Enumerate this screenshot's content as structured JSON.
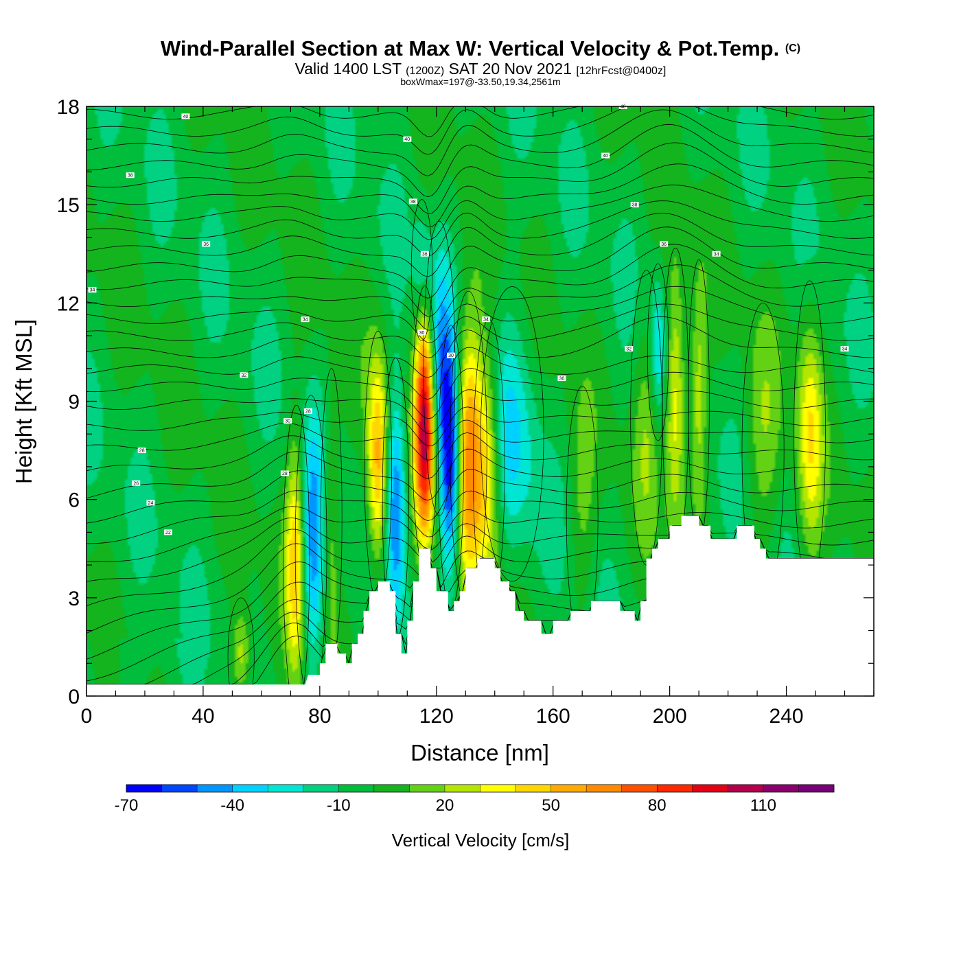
{
  "title": "Wind-Parallel Section at Max W: Vertical Velocity & Pot.Temp.",
  "copyright": "(C)",
  "subtitle_main_a": "Valid 1400 LST",
  "subtitle_small_a": "(1200Z)",
  "subtitle_main_b": "SAT 20 Nov 2021",
  "subtitle_small_b": "[12hrFcst@0400z]",
  "subtitle3": "boxWmax=197@-33.50,19.34,2561m",
  "chart_data": {
    "type": "heatmap",
    "xlabel": "Distance [nm]",
    "ylabel": "Height [Kft MSL]",
    "xlim": [
      0,
      270
    ],
    "ylim": [
      0,
      18
    ],
    "x_ticks": [
      0,
      40,
      80,
      120,
      160,
      200,
      240
    ],
    "y_ticks": [
      0,
      3,
      6,
      9,
      12,
      15,
      18
    ],
    "colorbar": {
      "title": "Vertical Velocity [cm/s]",
      "tick_values": [
        -70,
        -40,
        -10,
        20,
        50,
        80,
        110
      ],
      "bins": [
        -70,
        -60,
        -50,
        -40,
        -30,
        -20,
        -10,
        0,
        10,
        20,
        30,
        40,
        50,
        60,
        70,
        80,
        90,
        100,
        110,
        120,
        130
      ],
      "colors": [
        "#0000ff",
        "#0046ff",
        "#0096ff",
        "#00d2ff",
        "#00e6d2",
        "#00d282",
        "#00be3c",
        "#14b41e",
        "#64d214",
        "#b4e600",
        "#ffff00",
        "#ffd700",
        "#ffaa00",
        "#ff8c00",
        "#ff5000",
        "#ff2800",
        "#e60014",
        "#b4004b",
        "#8c006e",
        "#780078"
      ]
    },
    "terrain": [
      [
        0,
        0.35
      ],
      [
        75,
        0.35
      ],
      [
        76,
        0.65
      ],
      [
        80,
        0.65
      ],
      [
        80,
        1.0
      ],
      [
        82,
        1.0
      ],
      [
        82,
        1.6
      ],
      [
        86,
        1.6
      ],
      [
        86,
        1.3
      ],
      [
        89,
        1.3
      ],
      [
        89,
        1.0
      ],
      [
        91,
        1.0
      ],
      [
        91,
        1.6
      ],
      [
        93,
        1.6
      ],
      [
        93,
        1.9
      ],
      [
        95,
        1.9
      ],
      [
        95,
        2.6
      ],
      [
        97,
        2.6
      ],
      [
        97,
        3.2
      ],
      [
        100,
        3.2
      ],
      [
        100,
        3.5
      ],
      [
        104,
        3.5
      ],
      [
        104,
        3.2
      ],
      [
        106,
        3.2
      ],
      [
        106,
        1.9
      ],
      [
        108,
        1.9
      ],
      [
        108,
        1.3
      ],
      [
        110,
        1.3
      ],
      [
        110,
        2.3
      ],
      [
        112,
        2.3
      ],
      [
        112,
        3.5
      ],
      [
        114,
        3.5
      ],
      [
        114,
        4.5
      ],
      [
        118,
        4.5
      ],
      [
        118,
        3.9
      ],
      [
        120,
        3.9
      ],
      [
        120,
        3.2
      ],
      [
        124,
        3.2
      ],
      [
        124,
        2.6
      ],
      [
        126,
        2.6
      ],
      [
        126,
        2.9
      ],
      [
        128,
        2.9
      ],
      [
        128,
        3.2
      ],
      [
        130,
        3.2
      ],
      [
        130,
        3.9
      ],
      [
        134,
        3.9
      ],
      [
        134,
        4.2
      ],
      [
        140,
        4.2
      ],
      [
        140,
        3.9
      ],
      [
        142,
        3.9
      ],
      [
        142,
        3.5
      ],
      [
        145,
        3.5
      ],
      [
        145,
        3.2
      ],
      [
        147,
        3.2
      ],
      [
        147,
        2.6
      ],
      [
        150,
        2.6
      ],
      [
        150,
        2.3
      ],
      [
        156,
        2.3
      ],
      [
        156,
        1.9
      ],
      [
        160,
        1.9
      ],
      [
        160,
        2.3
      ],
      [
        166,
        2.3
      ],
      [
        166,
        2.6
      ],
      [
        173,
        2.6
      ],
      [
        173,
        2.9
      ],
      [
        183,
        2.9
      ],
      [
        183,
        2.6
      ],
      [
        188,
        2.6
      ],
      [
        188,
        2.3
      ],
      [
        190,
        2.3
      ],
      [
        190,
        2.9
      ],
      [
        192,
        2.9
      ],
      [
        192,
        4.2
      ],
      [
        194,
        4.2
      ],
      [
        194,
        4.5
      ],
      [
        196,
        4.5
      ],
      [
        196,
        4.8
      ],
      [
        200,
        4.8
      ],
      [
        200,
        5.2
      ],
      [
        204,
        5.2
      ],
      [
        204,
        5.5
      ],
      [
        210,
        5.5
      ],
      [
        210,
        5.2
      ],
      [
        214,
        5.2
      ],
      [
        214,
        4.8
      ],
      [
        223,
        4.8
      ],
      [
        223,
        5.2
      ],
      [
        229,
        5.2
      ],
      [
        229,
        4.8
      ],
      [
        231,
        4.8
      ],
      [
        231,
        4.5
      ],
      [
        233,
        4.5
      ],
      [
        233,
        4.2
      ],
      [
        270,
        4.2
      ]
    ],
    "updrafts": [
      {
        "x": 72,
        "y": 4.2,
        "w": 53,
        "sx": 2.5,
        "sy": 2.6
      },
      {
        "x": 53,
        "y": 1.2,
        "w": 32,
        "sx": 2.5,
        "sy": 1.0
      },
      {
        "x": 84,
        "y": 5.5,
        "w": 22,
        "sx": 2.0,
        "sy": 2.5
      },
      {
        "x": 100,
        "y": 7.0,
        "w": 58,
        "sx": 2.6,
        "sy": 2.3
      },
      {
        "x": 116,
        "y": 8.2,
        "w": 112,
        "sx": 2.4,
        "sy": 2.4
      },
      {
        "x": 131,
        "y": 7.5,
        "w": 68,
        "sx": 3.5,
        "sy": 2.7
      },
      {
        "x": 138,
        "y": 7.0,
        "w": 45,
        "sx": 3.0,
        "sy": 2.5
      },
      {
        "x": 202,
        "y": 9.0,
        "w": 45,
        "sx": 2.5,
        "sy": 2.6
      },
      {
        "x": 210,
        "y": 9.0,
        "w": 32,
        "sx": 2.0,
        "sy": 2.4
      },
      {
        "x": 248,
        "y": 8.0,
        "w": 38,
        "sx": 3.0,
        "sy": 2.6
      },
      {
        "x": 192,
        "y": 8.5,
        "w": 18,
        "sx": 3.0,
        "sy": 2.5
      },
      {
        "x": 170,
        "y": 5.5,
        "w": 15,
        "sx": 3.0,
        "sy": 2.2
      },
      {
        "x": 232,
        "y": 7.5,
        "w": 18,
        "sx": 4.0,
        "sy": 2.5
      }
    ],
    "downdrafts": [
      {
        "x": 77,
        "y": 4.5,
        "w": -45,
        "sx": 3.0,
        "sy": 2.6
      },
      {
        "x": 106,
        "y": 6.0,
        "w": -52,
        "sx": 2.5,
        "sy": 2.4
      },
      {
        "x": 125,
        "y": 7.0,
        "w": -72,
        "sx": 2.4,
        "sy": 2.4
      },
      {
        "x": 121,
        "y": 10.0,
        "w": -35,
        "sx": 3.0,
        "sy": 2.5
      },
      {
        "x": 146,
        "y": 8.0,
        "w": -25,
        "sx": 6.0,
        "sy": 2.5
      },
      {
        "x": 196,
        "y": 10.5,
        "w": -28,
        "sx": 2.0,
        "sy": 1.5
      },
      {
        "x": 115,
        "y": 13.0,
        "w": -20,
        "sx": 2.0,
        "sy": 1.2
      }
    ],
    "theta_contour_labels": [
      {
        "text": "40",
        "x": 34,
        "y": 17.7
      },
      {
        "text": "40",
        "x": 110,
        "y": 17.0
      },
      {
        "text": "40",
        "x": 184,
        "y": 18.0
      },
      {
        "text": "40",
        "x": 178,
        "y": 16.5
      },
      {
        "text": "38",
        "x": 15,
        "y": 15.9
      },
      {
        "text": "38",
        "x": 112,
        "y": 15.1
      },
      {
        "text": "38",
        "x": 188,
        "y": 15.0
      },
      {
        "text": "36",
        "x": 41,
        "y": 13.8
      },
      {
        "text": "36",
        "x": 116,
        "y": 13.5
      },
      {
        "text": "36",
        "x": 198,
        "y": 13.8
      },
      {
        "text": "34",
        "x": 2,
        "y": 12.4
      },
      {
        "text": "34",
        "x": 75,
        "y": 11.5
      },
      {
        "text": "34",
        "x": 137,
        "y": 11.5
      },
      {
        "text": "34",
        "x": 216,
        "y": 13.5
      },
      {
        "text": "34",
        "x": 260,
        "y": 10.6
      },
      {
        "text": "32",
        "x": 54,
        "y": 9.8
      },
      {
        "text": "32",
        "x": 186,
        "y": 10.6
      },
      {
        "text": "30",
        "x": 115,
        "y": 11.1
      },
      {
        "text": "30",
        "x": 125,
        "y": 10.4
      },
      {
        "text": "30",
        "x": 163,
        "y": 9.7
      },
      {
        "text": "30",
        "x": 69,
        "y": 8.4
      },
      {
        "text": "28",
        "x": 76,
        "y": 8.7
      },
      {
        "text": "28",
        "x": 19,
        "y": 7.5
      },
      {
        "text": "28",
        "x": 68,
        "y": 6.8
      },
      {
        "text": "26",
        "x": 17,
        "y": 6.5
      },
      {
        "text": "24",
        "x": 22,
        "y": 5.9
      },
      {
        "text": "22",
        "x": 28,
        "y": 5.0
      }
    ]
  }
}
